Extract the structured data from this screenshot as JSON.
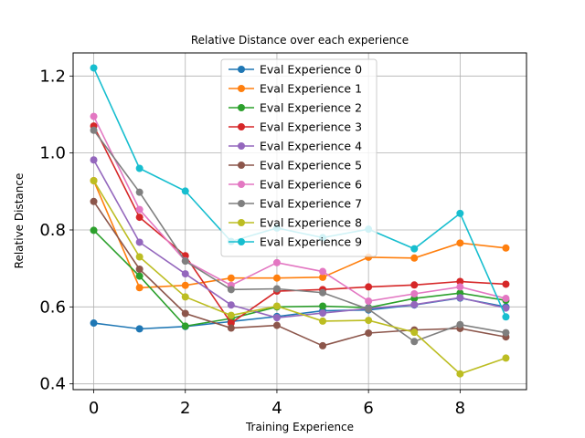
{
  "chart_data": {
    "type": "line",
    "title": "Relative Distance over each experience",
    "xlabel": "Training Experience",
    "ylabel": "Relative Distance",
    "xlim": [
      -0.45,
      9.45
    ],
    "ylim": [
      0.385,
      1.26
    ],
    "xticks": [
      0,
      2,
      4,
      6,
      8
    ],
    "yticks": [
      0.4,
      0.6,
      0.8,
      1.0,
      1.2
    ],
    "ytick_labels": [
      "0.4",
      "0.6",
      "0.8",
      "1.0",
      "1.2"
    ],
    "grid": true,
    "legend_position": "top-center",
    "x": [
      0,
      1,
      2,
      3,
      4,
      5,
      6,
      7,
      8,
      9
    ],
    "series": [
      {
        "name": "Eval Experience 0",
        "color": "#1f77b4",
        "values": [
          0.558,
          0.543,
          0.549,
          0.562,
          0.575,
          0.59,
          0.592,
          0.605,
          0.623,
          0.6
        ]
      },
      {
        "name": "Eval Experience 1",
        "color": "#ff7f0e",
        "values": [
          0.928,
          0.65,
          0.656,
          0.675,
          0.675,
          0.677,
          0.729,
          0.727,
          0.766,
          0.753
        ]
      },
      {
        "name": "Eval Experience 2",
        "color": "#2ca02c",
        "values": [
          0.799,
          0.68,
          0.55,
          0.57,
          0.6,
          0.602,
          0.598,
          0.622,
          0.636,
          0.617
        ]
      },
      {
        "name": "Eval Experience 3",
        "color": "#d62728",
        "values": [
          1.07,
          0.833,
          0.733,
          0.558,
          0.641,
          0.645,
          0.652,
          0.657,
          0.666,
          0.659
        ]
      },
      {
        "name": "Eval Experience 4",
        "color": "#9467bd",
        "values": [
          0.982,
          0.768,
          0.686,
          0.605,
          0.572,
          0.584,
          0.596,
          0.606,
          0.624,
          0.597
        ]
      },
      {
        "name": "Eval Experience 5",
        "color": "#8c564b",
        "values": [
          0.874,
          0.698,
          0.583,
          0.545,
          0.552,
          0.499,
          0.532,
          0.54,
          0.544,
          0.522
        ]
      },
      {
        "name": "Eval Experience 6",
        "color": "#e377c2",
        "values": [
          1.095,
          0.853,
          0.72,
          0.656,
          0.715,
          0.692,
          0.615,
          0.634,
          0.652,
          0.622
        ]
      },
      {
        "name": "Eval Experience 7",
        "color": "#7f7f7f",
        "values": [
          1.059,
          0.898,
          0.719,
          0.645,
          0.647,
          0.637,
          0.594,
          0.51,
          0.554,
          0.533
        ]
      },
      {
        "name": "Eval Experience 8",
        "color": "#bcbd22",
        "values": [
          0.928,
          0.73,
          0.626,
          0.578,
          0.602,
          0.563,
          0.565,
          0.534,
          0.426,
          0.467
        ]
      },
      {
        "name": "Eval Experience 9",
        "color": "#17becf",
        "values": [
          1.221,
          0.96,
          0.901,
          0.77,
          0.805,
          0.78,
          0.802,
          0.751,
          0.843,
          0.574
        ]
      }
    ]
  }
}
